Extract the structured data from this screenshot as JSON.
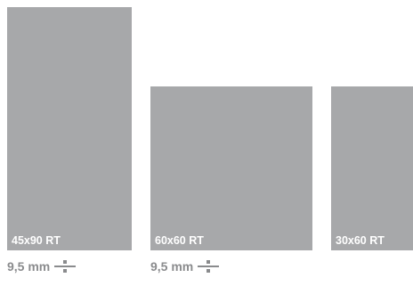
{
  "tiles": [
    {
      "label": "45x90 RT"
    },
    {
      "label": "60x60 RT"
    },
    {
      "label": "30x60 RT"
    }
  ],
  "thickness": [
    {
      "value": "9,5 mm",
      "icon": "rectified-edge-icon"
    },
    {
      "value": "9,5 mm",
      "icon": "rectified-edge-icon"
    }
  ],
  "colors": {
    "tile": "#a7a8aa",
    "label": "#ffffff",
    "thickness_text": "#8a8b8d"
  }
}
